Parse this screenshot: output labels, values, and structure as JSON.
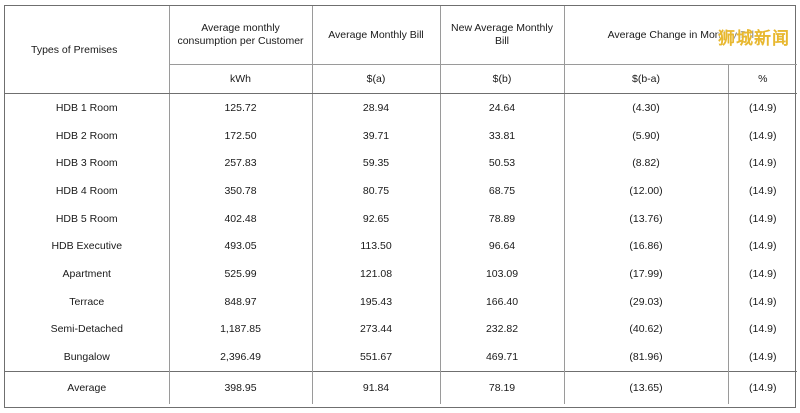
{
  "watermark": "狮城新闻",
  "table": {
    "headers": {
      "type": "Types of Premises",
      "consumption": "Average monthly consumption per Customer",
      "avg_bill": "Average Monthly Bill",
      "new_bill": "New Average Monthly Bill",
      "change": "Average Change in Monthly Bill"
    },
    "units": {
      "consumption": "kWh",
      "avg_bill": "$(a)",
      "new_bill": "$(b)",
      "change_amt": "$(b-a)",
      "change_pct": "%"
    },
    "rows": [
      {
        "type": "HDB 1 Room",
        "kwh": "125.72",
        "a": "28.94",
        "b": "24.64",
        "diff": "(4.30)",
        "pct": "(14.9)"
      },
      {
        "type": "HDB 2 Room",
        "kwh": "172.50",
        "a": "39.71",
        "b": "33.81",
        "diff": "(5.90)",
        "pct": "(14.9)"
      },
      {
        "type": "HDB 3 Room",
        "kwh": "257.83",
        "a": "59.35",
        "b": "50.53",
        "diff": "(8.82)",
        "pct": "(14.9)"
      },
      {
        "type": "HDB 4 Room",
        "kwh": "350.78",
        "a": "80.75",
        "b": "68.75",
        "diff": "(12.00)",
        "pct": "(14.9)"
      },
      {
        "type": "HDB 5 Room",
        "kwh": "402.48",
        "a": "92.65",
        "b": "78.89",
        "diff": "(13.76)",
        "pct": "(14.9)"
      },
      {
        "type": "HDB Executive",
        "kwh": "493.05",
        "a": "113.50",
        "b": "96.64",
        "diff": "(16.86)",
        "pct": "(14.9)"
      },
      {
        "type": "Apartment",
        "kwh": "525.99",
        "a": "121.08",
        "b": "103.09",
        "diff": "(17.99)",
        "pct": "(14.9)"
      },
      {
        "type": "Terrace",
        "kwh": "848.97",
        "a": "195.43",
        "b": "166.40",
        "diff": "(29.03)",
        "pct": "(14.9)"
      },
      {
        "type": "Semi-Detached",
        "kwh": "1,187.85",
        "a": "273.44",
        "b": "232.82",
        "diff": "(40.62)",
        "pct": "(14.9)"
      },
      {
        "type": "Bungalow",
        "kwh": "2,396.49",
        "a": "551.67",
        "b": "469.71",
        "diff": "(81.96)",
        "pct": "(14.9)"
      }
    ],
    "average": {
      "type": "Average",
      "kwh": "398.95",
      "a": "91.84",
      "b": "78.19",
      "diff": "(13.65)",
      "pct": "(14.9)"
    }
  }
}
